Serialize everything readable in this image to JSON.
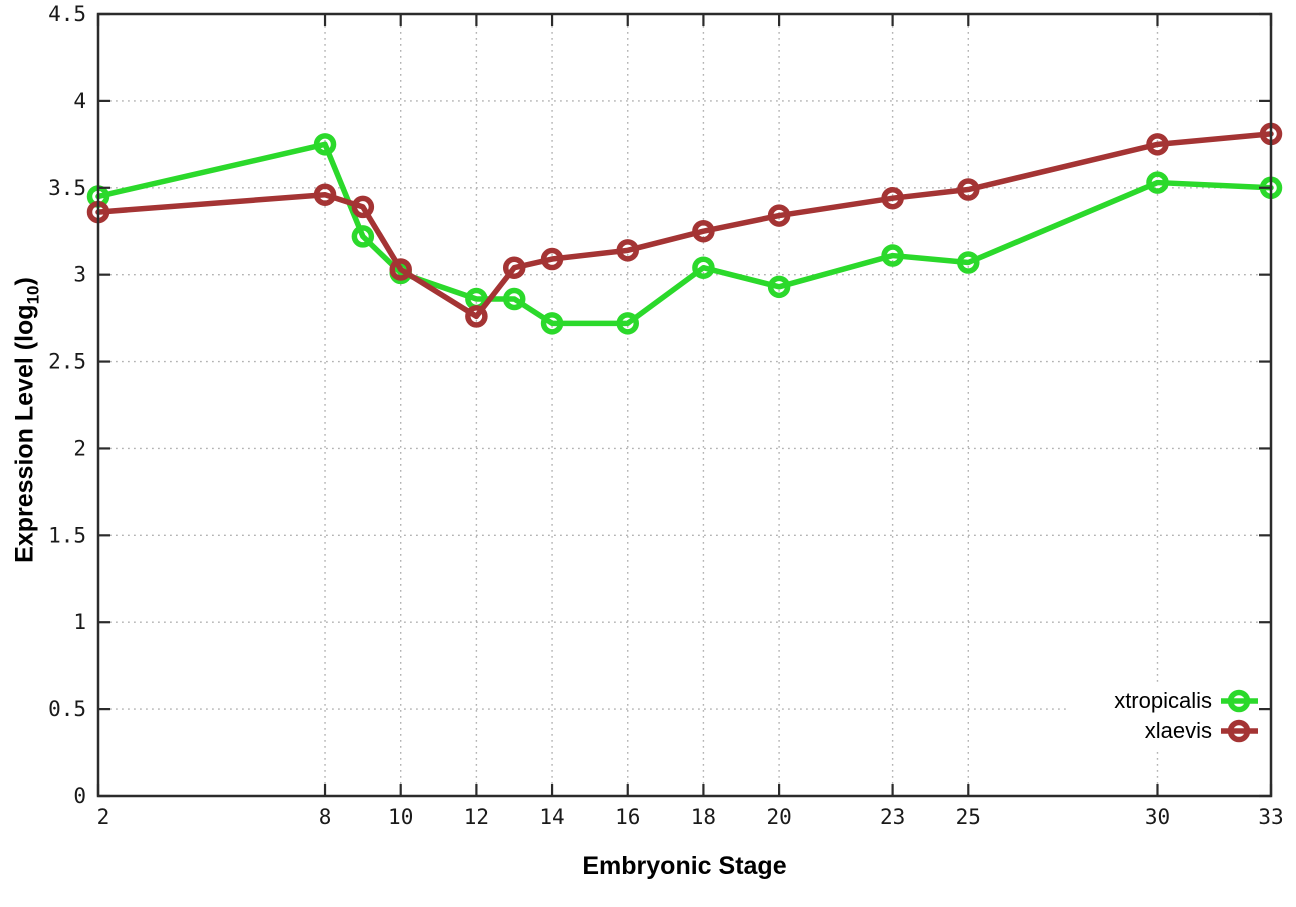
{
  "chart_data": {
    "type": "line",
    "title": "",
    "xlabel": "Embryonic Stage",
    "ylabel": "Expression Level (log10)",
    "ylabel_parts": {
      "prefix": "Expression Level (log",
      "sub": "10",
      "suffix": ")"
    },
    "xlim": [
      2,
      33
    ],
    "ylim": [
      0,
      4.5
    ],
    "x_ticks": [
      2,
      8,
      10,
      12,
      14,
      16,
      18,
      20,
      23,
      25,
      30,
      33
    ],
    "y_ticks": [
      0,
      0.5,
      1,
      1.5,
      2,
      2.5,
      3,
      3.5,
      4,
      4.5
    ],
    "grid": true,
    "legend_position": "bottom-right",
    "x": [
      2,
      8,
      9,
      10,
      12,
      13,
      14,
      16,
      18,
      20,
      23,
      25,
      30,
      33
    ],
    "series": [
      {
        "name": "xtropicalis",
        "color": "#2bd92b",
        "marker": "open-circle",
        "values": [
          3.45,
          3.75,
          3.22,
          3.01,
          2.86,
          2.86,
          2.72,
          2.72,
          3.04,
          2.93,
          3.11,
          3.07,
          3.53,
          3.5
        ]
      },
      {
        "name": "xlaevis",
        "color": "#a43434",
        "marker": "open-circle",
        "values": [
          3.36,
          3.46,
          3.39,
          3.03,
          2.76,
          3.04,
          3.09,
          3.14,
          3.25,
          3.34,
          3.44,
          3.49,
          3.75,
          3.81
        ]
      }
    ],
    "style_colors": {
      "axis": "#2b2b2b",
      "grid": "#b3b3b3",
      "tick_label": "#1a1a1a",
      "legend_text": "#000000",
      "background": "#ffffff"
    }
  }
}
